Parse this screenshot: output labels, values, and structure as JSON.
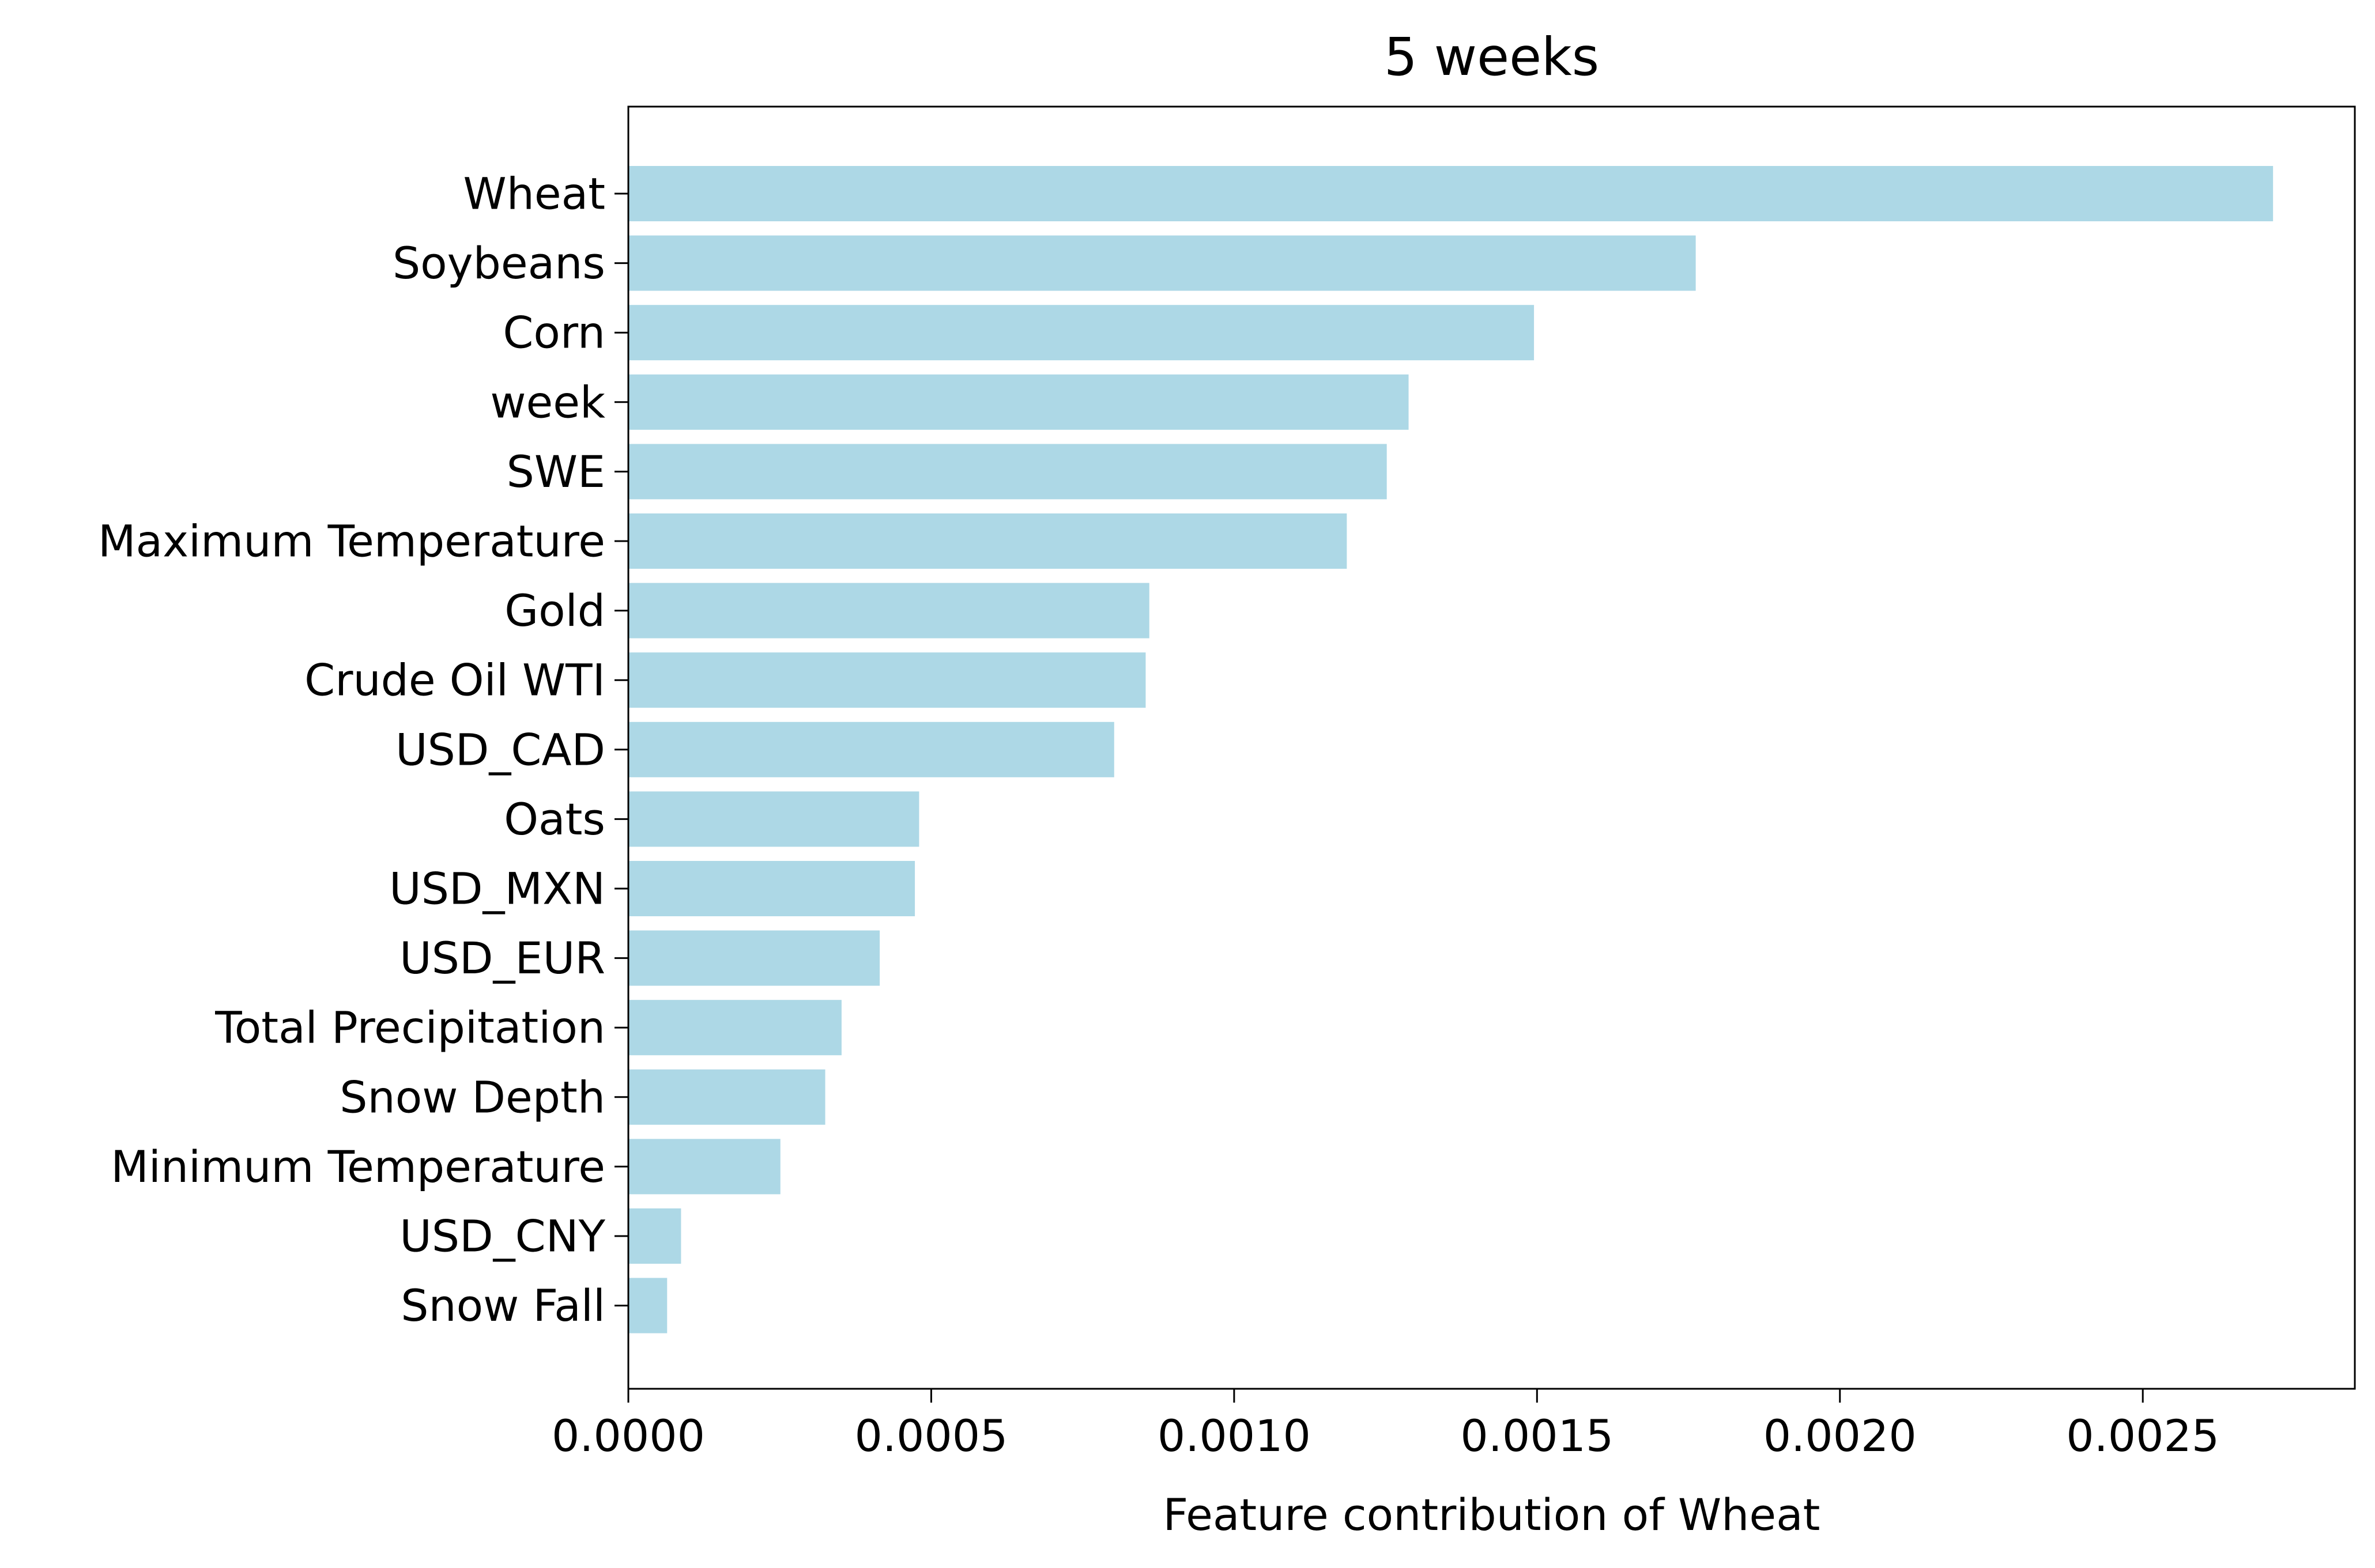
{
  "chart_data": {
    "type": "bar",
    "orientation": "horizontal",
    "title": "5 weeks",
    "xlabel": "Feature contribution of Wheat",
    "ylabel": "",
    "categories": [
      "Wheat",
      "Soybeans",
      "Corn",
      "week",
      "SWE",
      "Maximum Temperature",
      "Gold",
      "Crude Oil WTI",
      "USD_CAD",
      "Oats",
      "USD_MXN",
      "USD_EUR",
      "Total Precipitation",
      "Snow Depth",
      "Minimum Temperature",
      "USD_CNY",
      "Snow Fall"
    ],
    "values": [
      0.002715,
      0.001762,
      0.001495,
      0.001288,
      0.001252,
      0.001186,
      0.00086,
      0.000854,
      0.000802,
      0.00048,
      0.000473,
      0.000415,
      0.000352,
      0.000325,
      0.000251,
      8.7e-05,
      6.4e-05
    ],
    "xlim": [
      0,
      0.00285
    ],
    "xticks": [
      0,
      0.0005,
      0.001,
      0.0015,
      0.002,
      0.0025
    ],
    "xtick_labels": [
      "0.0000",
      "0.0005",
      "0.0010",
      "0.0015",
      "0.0020",
      "0.0025"
    ],
    "bar_color": "#add8e6",
    "grid": false,
    "legend": "none"
  }
}
